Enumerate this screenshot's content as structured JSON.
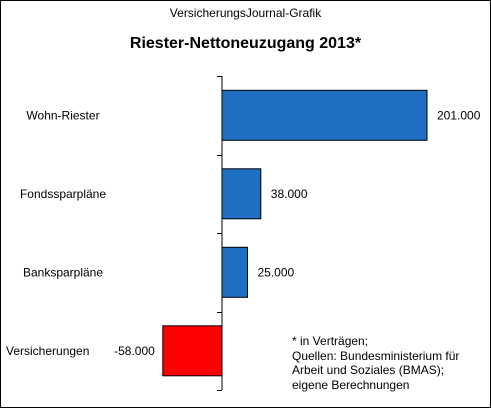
{
  "chart_data": {
    "type": "bar",
    "orientation": "horizontal",
    "source_label": "VersicherungsJournal-Grafik",
    "title": "Riester-Nettoneuzugang 2013*",
    "categories": [
      "Wohn-Riester",
      "Fondssparpläne",
      "Banksparpläne",
      "Versicherungen"
    ],
    "values": [
      201000,
      38000,
      25000,
      -58000
    ],
    "value_labels": [
      "201.000",
      "38.000",
      "25.000",
      "-58.000"
    ],
    "xlim": [
      -58000,
      201000
    ],
    "grid": false,
    "colors": {
      "positive": "#1f6fc5",
      "negative": "#ff0000",
      "axis": "#000000"
    },
    "footnote": [
      "* in Verträgen;",
      "Quellen: Bundesministerium für",
      "Arbeit und Soziales (BMAS);",
      "eigene Berechnungen"
    ]
  }
}
